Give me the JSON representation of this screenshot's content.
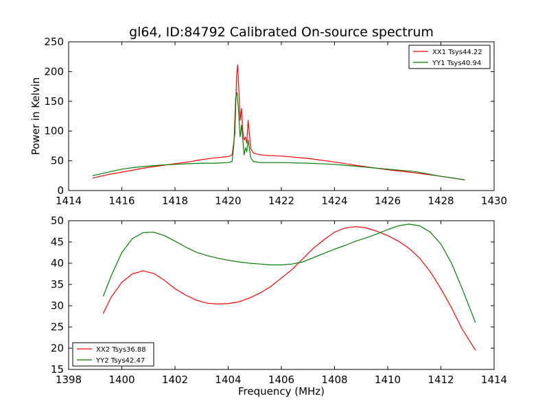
{
  "figure": {
    "title": "gl64, ID:84792 Calibrated On-source spectrum"
  },
  "chart_data": [
    {
      "type": "line",
      "title": "gl64, ID:84792 Calibrated On-source spectrum",
      "xlabel": "",
      "ylabel": "Power in Kelvin",
      "xlim": [
        1414,
        1430
      ],
      "ylim": [
        0,
        250
      ],
      "xticks": [
        1414,
        1416,
        1418,
        1420,
        1422,
        1424,
        1426,
        1428,
        1430
      ],
      "yticks": [
        0,
        50,
        100,
        150,
        200,
        250
      ],
      "grid": false,
      "legend": "top-right",
      "series": [
        {
          "name": "XX1 Tsys44.22",
          "color": "#ff0000",
          "x": [
            1414.9,
            1415.5,
            1416.0,
            1416.5,
            1417.0,
            1417.5,
            1418.0,
            1418.5,
            1419.0,
            1419.5,
            1420.0,
            1420.15,
            1420.25,
            1420.32,
            1420.36,
            1420.4,
            1420.45,
            1420.5,
            1420.55,
            1420.6,
            1420.65,
            1420.7,
            1420.75,
            1420.8,
            1420.85,
            1420.95,
            1421.2,
            1421.5,
            1422.0,
            1423.0,
            1424.0,
            1425.0,
            1426.0,
            1427.0,
            1428.0,
            1428.9
          ],
          "y": [
            21,
            27,
            31,
            35,
            39,
            42,
            45,
            48,
            52,
            55,
            57,
            60,
            95,
            195,
            211,
            170,
            118,
            138,
            100,
            85,
            90,
            80,
            118,
            95,
            70,
            63,
            60,
            59,
            58,
            54,
            48,
            41,
            35,
            30,
            24,
            18
          ]
        },
        {
          "name": "YY1 Tsys40.94",
          "color": "#008000",
          "x": [
            1414.9,
            1415.5,
            1416.0,
            1416.5,
            1417.0,
            1417.5,
            1418.0,
            1418.5,
            1419.0,
            1419.5,
            1420.0,
            1420.15,
            1420.22,
            1420.28,
            1420.33,
            1420.38,
            1420.45,
            1420.5,
            1420.55,
            1420.6,
            1420.65,
            1420.7,
            1420.75,
            1420.8,
            1420.85,
            1420.95,
            1421.2,
            1421.5,
            1422.0,
            1423.0,
            1424.0,
            1425.0,
            1426.0,
            1427.0,
            1428.0,
            1428.9
          ],
          "y": [
            25,
            31,
            36,
            39,
            41,
            43,
            44,
            45,
            46,
            46,
            47,
            49,
            80,
            155,
            165,
            140,
            90,
            110,
            85,
            60,
            72,
            65,
            85,
            70,
            55,
            49,
            47,
            47,
            47,
            46,
            44,
            40,
            36,
            32,
            24,
            18
          ]
        }
      ]
    },
    {
      "type": "line",
      "title": "",
      "xlabel": "Frequency (MHz)",
      "ylabel": "",
      "xlim": [
        1398,
        1414
      ],
      "ylim": [
        15,
        50
      ],
      "xticks": [
        1398,
        1400,
        1402,
        1404,
        1406,
        1408,
        1410,
        1412,
        1414
      ],
      "yticks": [
        15,
        20,
        25,
        30,
        35,
        40,
        45,
        50
      ],
      "grid": false,
      "legend": "bottom-left",
      "series": [
        {
          "name": "XX2 Tsys36.88",
          "color": "#ff0000",
          "x": [
            1399.3,
            1399.6,
            1400.0,
            1400.4,
            1400.8,
            1401.2,
            1401.6,
            1402.0,
            1402.4,
            1402.8,
            1403.2,
            1403.6,
            1404.0,
            1404.4,
            1404.8,
            1405.2,
            1405.6,
            1406.0,
            1406.4,
            1406.8,
            1407.2,
            1407.6,
            1408.0,
            1408.4,
            1408.8,
            1409.2,
            1409.6,
            1410.0,
            1410.4,
            1410.8,
            1411.2,
            1411.6,
            1412.0,
            1412.4,
            1412.8,
            1413.3
          ],
          "y": [
            28.2,
            32.0,
            35.5,
            37.5,
            38.2,
            37.6,
            36.0,
            34.0,
            32.5,
            31.3,
            30.6,
            30.4,
            30.5,
            30.9,
            31.8,
            33.0,
            34.5,
            36.5,
            38.5,
            41.0,
            43.5,
            45.5,
            47.3,
            48.3,
            48.6,
            48.3,
            47.5,
            46.5,
            45.2,
            43.5,
            41.2,
            38.0,
            34.0,
            29.5,
            24.5,
            19.5
          ]
        },
        {
          "name": "YY2 Tsys42.47",
          "color": "#008000",
          "x": [
            1399.3,
            1399.6,
            1400.0,
            1400.4,
            1400.8,
            1401.2,
            1401.6,
            1402.0,
            1402.4,
            1402.8,
            1403.2,
            1403.6,
            1404.0,
            1404.4,
            1404.8,
            1405.2,
            1405.6,
            1406.0,
            1406.4,
            1406.8,
            1407.2,
            1407.6,
            1408.0,
            1408.4,
            1408.8,
            1409.2,
            1409.6,
            1410.0,
            1410.4,
            1410.8,
            1411.2,
            1411.6,
            1412.0,
            1412.4,
            1412.8,
            1413.3
          ],
          "y": [
            32.2,
            37.0,
            42.5,
            45.8,
            47.2,
            47.3,
            46.5,
            45.2,
            43.8,
            42.6,
            41.8,
            41.2,
            40.7,
            40.3,
            40.0,
            39.8,
            39.6,
            39.6,
            39.8,
            40.3,
            41.3,
            42.3,
            43.3,
            44.2,
            45.2,
            46.0,
            46.9,
            47.9,
            48.8,
            49.2,
            48.8,
            47.3,
            44.5,
            40.0,
            34.0,
            26.0
          ]
        }
      ]
    }
  ]
}
